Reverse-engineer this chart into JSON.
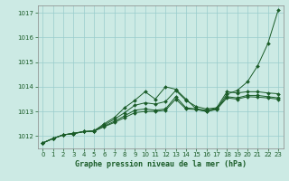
{
  "title": "Graphe pression niveau de la mer (hPa)",
  "bg_color": "#cceae4",
  "grid_color": "#99cccc",
  "line_color": "#1a5c28",
  "xlim": [
    -0.5,
    23.5
  ],
  "ylim": [
    1011.5,
    1017.3
  ],
  "yticks": [
    1012,
    1013,
    1014,
    1015,
    1016,
    1017
  ],
  "xticks": [
    0,
    1,
    2,
    3,
    4,
    5,
    6,
    7,
    8,
    9,
    10,
    11,
    12,
    13,
    14,
    15,
    16,
    17,
    18,
    19,
    20,
    21,
    22,
    23
  ],
  "series": [
    [
      1011.72,
      1011.9,
      1012.05,
      1012.1,
      1012.18,
      1012.2,
      1012.5,
      1012.75,
      1013.15,
      1013.45,
      1013.8,
      1013.5,
      1014.0,
      1013.9,
      1013.5,
      1013.1,
      1013.0,
      1013.1,
      1013.7,
      1013.85,
      1014.2,
      1014.85,
      1015.75,
      1017.1
    ],
    [
      1011.72,
      1011.9,
      1012.05,
      1012.1,
      1012.18,
      1012.22,
      1012.45,
      1012.68,
      1012.95,
      1013.25,
      1013.35,
      1013.3,
      1013.4,
      1013.85,
      1013.45,
      1013.2,
      1013.1,
      1013.15,
      1013.8,
      1013.75,
      1013.8,
      1013.8,
      1013.75,
      1013.72
    ],
    [
      1011.72,
      1011.9,
      1012.05,
      1012.12,
      1012.18,
      1012.2,
      1012.4,
      1012.6,
      1012.82,
      1013.05,
      1013.1,
      1013.05,
      1013.1,
      1013.6,
      1013.15,
      1013.1,
      1013.05,
      1013.12,
      1013.6,
      1013.55,
      1013.65,
      1013.65,
      1013.6,
      1013.55
    ],
    [
      1011.72,
      1011.9,
      1012.05,
      1012.1,
      1012.18,
      1012.2,
      1012.38,
      1012.55,
      1012.75,
      1012.95,
      1013.0,
      1013.0,
      1013.05,
      1013.5,
      1013.1,
      1013.08,
      1013.0,
      1013.08,
      1013.55,
      1013.5,
      1013.6,
      1013.58,
      1013.55,
      1013.5
    ]
  ]
}
